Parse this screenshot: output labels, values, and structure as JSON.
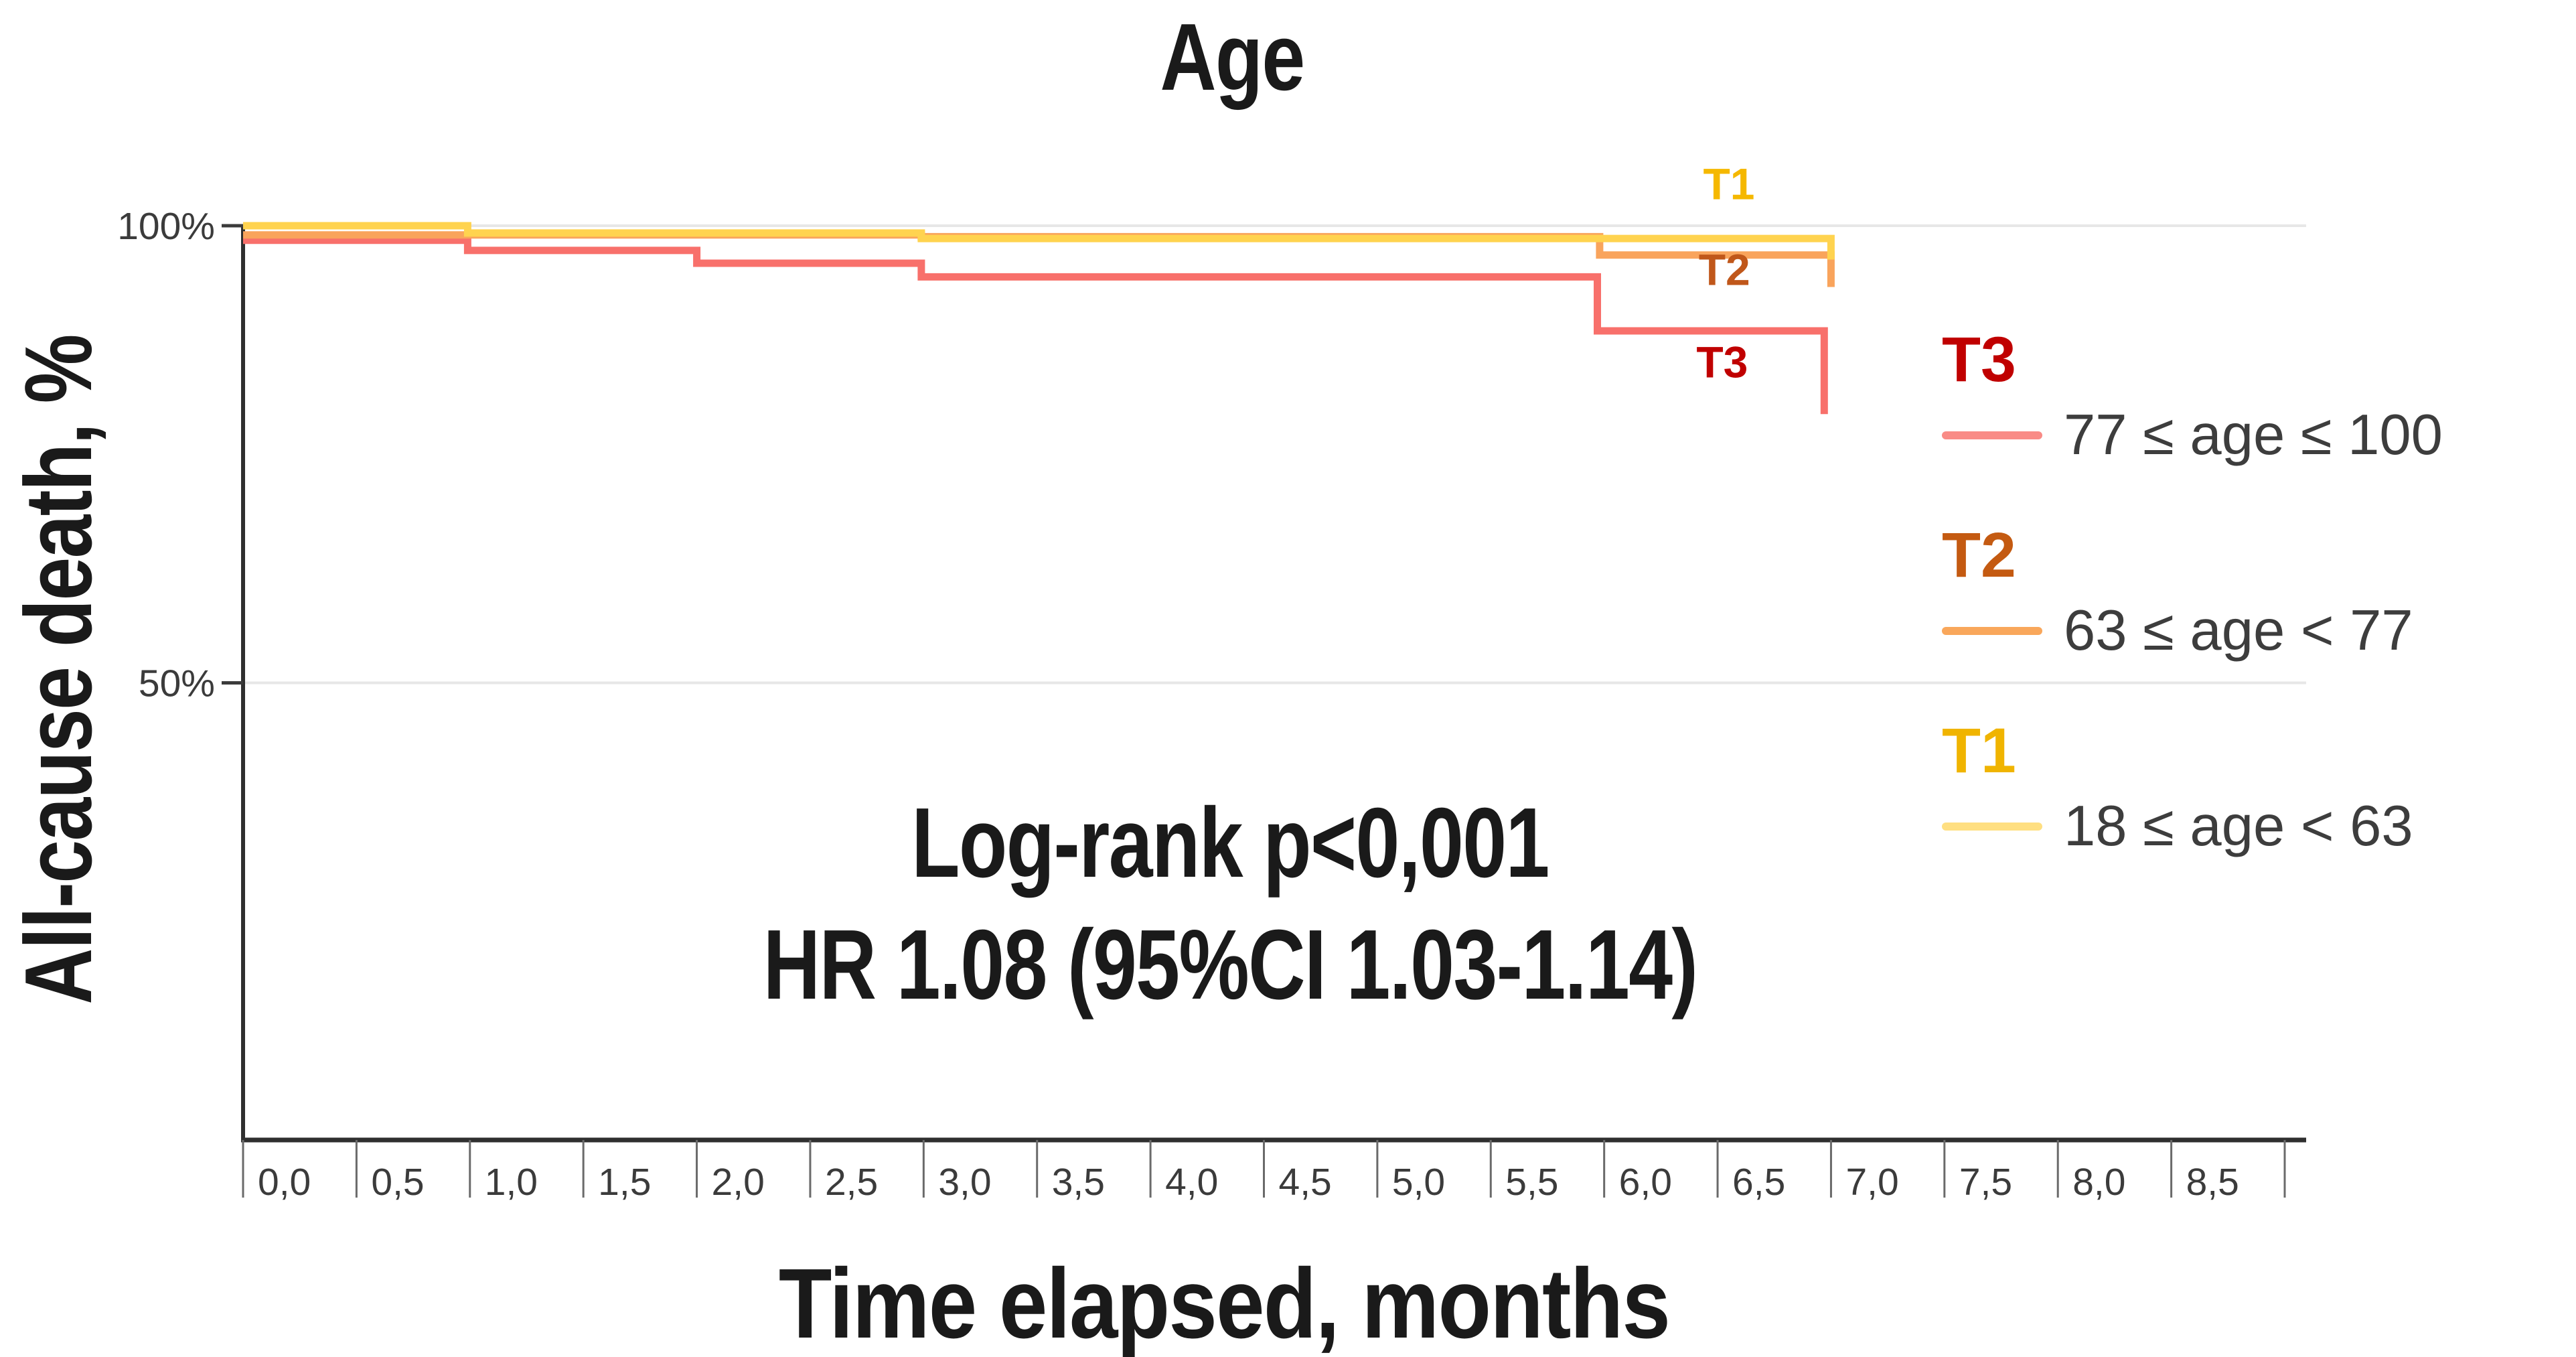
{
  "title": "Age",
  "y_axis_title": "All-cause death, %",
  "x_axis_title": "Time elapsed, months",
  "annotation": {
    "line1": "Log-rank p<0,001",
    "line2": "HR 1.08 (95%CI 1.03-1.14)"
  },
  "legend": {
    "entries": [
      {
        "label": "T3",
        "range": "77 ≤ age ≤ 100",
        "label_color": "#C00000",
        "swatch_color": "#F98B86"
      },
      {
        "label": "T2",
        "range": "63 ≤ age < 77",
        "label_color": "#C45A11",
        "swatch_color": "#F9A75B"
      },
      {
        "label": "T1",
        "range": "18 ≤ age < 63",
        "label_color": "#F0B400",
        "swatch_color": "#FFDF81"
      }
    ]
  },
  "chart_data": {
    "type": "line",
    "subtype": "kaplan-meier-step",
    "title": "Age",
    "xlabel": "Time elapsed, months",
    "ylabel": "All-cause death, %",
    "xlim": [
      0,
      9
    ],
    "ylim": [
      0,
      100
    ],
    "x_tick_labels": [
      "0,0",
      "0,5",
      "1,0",
      "1,5",
      "2,0",
      "2,5",
      "3,0",
      "3,5",
      "4,0",
      "4,5",
      "5,0",
      "5,5",
      "6,0",
      "6,5",
      "7,0",
      "7,5",
      "8,0",
      "8,5"
    ],
    "x_tick_step": 0.5,
    "y_ticks": [
      {
        "value": 100,
        "label": "100%"
      },
      {
        "value": 50,
        "label": "50%"
      }
    ],
    "gridlines_y": [
      100,
      50
    ],
    "grid_color": "#e7e7e7",
    "axis_color": "#2f2f2f",
    "tick_text_color": "#3b3b3b",
    "series": [
      {
        "id": "T3",
        "name": "77 ≤ age ≤ 100",
        "color": "#F8706B",
        "points": [
          [
            0,
            98.4
          ],
          [
            0.99,
            98.4
          ],
          [
            0.99,
            97.3
          ],
          [
            2.0,
            97.3
          ],
          [
            2.0,
            95.9
          ],
          [
            2.99,
            95.9
          ],
          [
            2.99,
            94.4
          ],
          [
            5.97,
            94.4
          ],
          [
            5.97,
            88.5
          ],
          [
            6.97,
            88.5
          ],
          [
            6.97,
            79.4
          ]
        ]
      },
      {
        "id": "T2",
        "name": "63 ≤ age < 77",
        "color": "#F9A45C",
        "points": [
          [
            0,
            99.0
          ],
          [
            2.99,
            99.0
          ],
          [
            2.99,
            98.8
          ],
          [
            5.98,
            98.8
          ],
          [
            5.98,
            96.8
          ],
          [
            7.0,
            96.8
          ],
          [
            7.0,
            93.3
          ]
        ]
      },
      {
        "id": "T1",
        "name": "18 ≤ age < 63",
        "color": "#FFD34F",
        "points": [
          [
            0,
            100
          ],
          [
            0.99,
            100
          ],
          [
            0.99,
            99.2
          ],
          [
            2.99,
            99.2
          ],
          [
            2.99,
            98.6
          ],
          [
            7.0,
            98.6
          ],
          [
            7.0,
            96.3
          ]
        ]
      }
    ],
    "curve_labels": [
      {
        "text": "T1",
        "x": 6.55,
        "y": 102.9,
        "color": "#F5B800"
      },
      {
        "text": "T2",
        "x": 6.53,
        "y": 93.5,
        "color": "#C0571A"
      },
      {
        "text": "T3",
        "x": 6.52,
        "y": 83.4,
        "color": "#C00000"
      }
    ]
  }
}
